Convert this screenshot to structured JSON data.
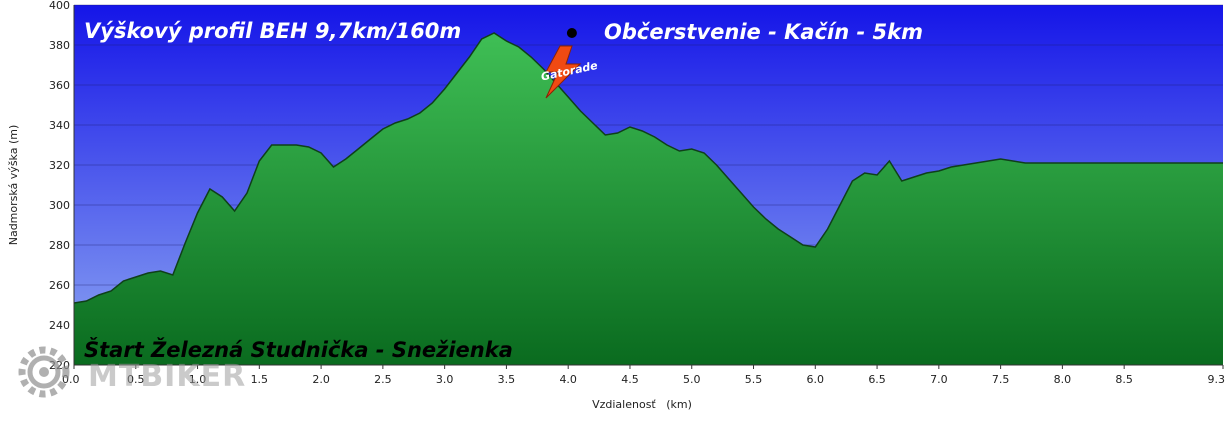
{
  "chart_data": {
    "type": "area",
    "title": "Výškový profil BEH 9,7km/160m",
    "xlabel": "Vzdialenosť   (km)",
    "ylabel": "Nadmorská výška (m)",
    "xlim": [
      0,
      9.3
    ],
    "ylim": [
      220,
      400
    ],
    "x_ticks": [
      "0.0",
      "0.5",
      "1.0",
      "1.5",
      "2.0",
      "2.5",
      "3.0",
      "3.5",
      "4.0",
      "4.5",
      "5.0",
      "5.5",
      "6.0",
      "6.5",
      "7.0",
      "7.5",
      "8.0",
      "8.5",
      "9.3"
    ],
    "y_ticks": [
      "220",
      "240",
      "260",
      "280",
      "300",
      "320",
      "340",
      "360",
      "380",
      "400"
    ],
    "grid": "horizontal",
    "series": [
      {
        "x": [
          0.0,
          0.1,
          0.2,
          0.3,
          0.4,
          0.5,
          0.6,
          0.7,
          0.8,
          0.9,
          1.0,
          1.1,
          1.2,
          1.3,
          1.4,
          1.5,
          1.6,
          1.7,
          1.8,
          1.9,
          2.0,
          2.1,
          2.2,
          2.3,
          2.4,
          2.5,
          2.6,
          2.7,
          2.8,
          2.9,
          3.0,
          3.1,
          3.2,
          3.3,
          3.4,
          3.5,
          3.6,
          3.7,
          3.8,
          3.9,
          4.0,
          4.1,
          4.2,
          4.3,
          4.4,
          4.5,
          4.6,
          4.7,
          4.8,
          4.9,
          5.0,
          5.1,
          5.2,
          5.3,
          5.4,
          5.5,
          5.6,
          5.7,
          5.8,
          5.9,
          6.0,
          6.1,
          6.2,
          6.3,
          6.4,
          6.5,
          6.6,
          6.7,
          6.8,
          6.9,
          7.0,
          7.1,
          7.2,
          7.3,
          7.4,
          7.5,
          7.6,
          7.7,
          7.8,
          7.9,
          8.0,
          8.1,
          8.2,
          8.3,
          8.4,
          8.5,
          8.6,
          8.7,
          8.8,
          8.9,
          9.0,
          9.1,
          9.2,
          9.3
        ],
        "y": [
          251,
          252,
          255,
          257,
          262,
          264,
          266,
          267,
          265,
          281,
          296,
          308,
          304,
          297,
          306,
          322,
          330,
          330,
          330,
          329,
          326,
          319,
          323,
          328,
          333,
          338,
          341,
          343,
          346,
          351,
          358,
          366,
          374,
          383,
          386,
          382,
          379,
          374,
          368,
          361,
          354,
          347,
          341,
          335,
          336,
          339,
          337,
          334,
          330,
          327,
          328,
          326,
          320,
          313,
          306,
          299,
          293,
          288,
          284,
          280,
          279,
          288,
          300,
          312,
          316,
          315,
          322,
          312,
          314,
          316,
          317,
          319,
          320,
          321,
          322,
          323,
          322,
          321,
          321,
          321,
          321,
          321,
          321,
          321,
          321,
          321,
          321,
          321,
          321,
          321,
          321,
          321,
          321,
          321
        ]
      }
    ],
    "annotations": [
      {
        "text": "Občerstvenie - Kačín - 5km",
        "x": 4.03,
        "y": 386
      },
      {
        "text": "Štart Železná Studnička - Snežienka"
      }
    ],
    "colors": {
      "sky_top": "#1515e8",
      "sky_bottom": "#8ea8f2",
      "area_top": "#3fbf55",
      "area_bottom": "#0a6b1f",
      "area_line": "#0f4019",
      "marker": "#000000"
    }
  },
  "decor": {
    "logo_text": "Gatorade",
    "watermark_text": "MTBIKER",
    "watermark_icon": "gear-icon"
  }
}
